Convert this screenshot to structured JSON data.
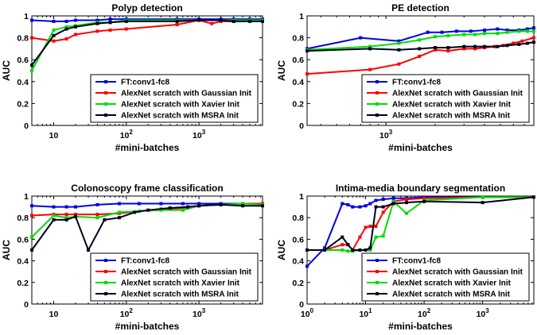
{
  "colors": {
    "FT": "#0000e6",
    "Gaussian": "#ff0000",
    "Xavier": "#00dd00",
    "MSRA": "#000020"
  },
  "legend_entries": [
    {
      "key": "FT",
      "label": "FT:conv1-fc8"
    },
    {
      "key": "Gaussian",
      "label": "AlexNet scratch with Gaussian Init"
    },
    {
      "key": "Xavier",
      "label": "AlexNet scratch with Xavier Init"
    },
    {
      "key": "MSRA",
      "label": "AlexNet scratch with MSRA Init"
    }
  ],
  "chart_data": [
    {
      "type": "line",
      "title": "Polyp detection",
      "xlabel": "#mini-batches",
      "ylabel": "AUC",
      "xscale": "log",
      "xlim": [
        5,
        7500
      ],
      "ylim": [
        0,
        1
      ],
      "xticks": [
        {
          "value": 10,
          "label": "10"
        },
        {
          "value": 100,
          "label": "2"
        },
        {
          "value": 1000,
          "label": "3"
        }
      ],
      "yticks": [
        "0",
        "0.2",
        "0.4",
        "0.6",
        "0.8",
        "1"
      ],
      "legend": "lower-right",
      "grid": false,
      "series": [
        {
          "key": "FT",
          "name": "FT:conv1-fc8",
          "x": [
            5,
            10,
            15,
            20,
            40,
            60,
            100,
            500,
            1000,
            2000,
            3000,
            5000,
            7500
          ],
          "y": [
            0.96,
            0.95,
            0.95,
            0.96,
            0.96,
            0.97,
            0.97,
            0.97,
            0.97,
            0.97,
            0.97,
            0.97,
            0.97
          ]
        },
        {
          "key": "Gaussian",
          "name": "AlexNet scratch with Gaussian Init",
          "x": [
            5,
            10,
            15,
            20,
            40,
            60,
            100,
            500,
            1000,
            1500,
            2000,
            3000,
            5000,
            7500
          ],
          "y": [
            0.8,
            0.77,
            0.79,
            0.83,
            0.86,
            0.87,
            0.88,
            0.92,
            0.96,
            0.93,
            0.95,
            0.95,
            0.96,
            0.96
          ]
        },
        {
          "key": "Xavier",
          "name": "AlexNet scratch with Xavier Init",
          "x": [
            5,
            10,
            15,
            20,
            40,
            60,
            100,
            500,
            1000,
            2000,
            3000,
            5000,
            7500
          ],
          "y": [
            0.5,
            0.87,
            0.9,
            0.91,
            0.94,
            0.94,
            0.96,
            0.96,
            0.96,
            0.96,
            0.96,
            0.96,
            0.96
          ]
        },
        {
          "key": "MSRA",
          "name": "AlexNet scratch with MSRA Init",
          "x": [
            5,
            10,
            15,
            20,
            40,
            60,
            100,
            500,
            1000,
            2000,
            3000,
            5000,
            7500
          ],
          "y": [
            0.55,
            0.82,
            0.88,
            0.9,
            0.93,
            0.94,
            0.95,
            0.95,
            0.96,
            0.96,
            0.95,
            0.95,
            0.95
          ]
        }
      ]
    },
    {
      "type": "line",
      "title": "PE detection",
      "xlabel": "#mini-batches",
      "ylabel": "AUC",
      "xscale": "log",
      "xlim": [
        330,
        8000
      ],
      "ylim": [
        0,
        1
      ],
      "xticks": [
        {
          "value": 1000,
          "label": "3"
        }
      ],
      "yticks": [
        "0",
        "0.2",
        "0.4",
        "0.6",
        "0.8",
        "1"
      ],
      "legend": "lower-right",
      "grid": false,
      "series": [
        {
          "key": "FT",
          "name": "FT:conv1-fc8",
          "x": [
            330,
            700,
            1200,
            1800,
            2200,
            2700,
            3300,
            4000,
            4800,
            5500,
            6500,
            7300,
            8000
          ],
          "y": [
            0.7,
            0.8,
            0.77,
            0.85,
            0.85,
            0.86,
            0.86,
            0.87,
            0.88,
            0.87,
            0.87,
            0.88,
            0.89
          ]
        },
        {
          "key": "Gaussian",
          "name": "AlexNet scratch with Gaussian Init",
          "x": [
            330,
            800,
            1200,
            1600,
            2000,
            2400,
            3000,
            3500,
            4000,
            4600,
            5200,
            6000,
            6800,
            8000
          ],
          "y": [
            0.47,
            0.51,
            0.56,
            0.63,
            0.69,
            0.68,
            0.7,
            0.7,
            0.71,
            0.72,
            0.73,
            0.75,
            0.77,
            0.8
          ]
        },
        {
          "key": "Xavier",
          "name": "AlexNet scratch with Xavier Init",
          "x": [
            330,
            800,
            1200,
            1600,
            2000,
            2400,
            3000,
            3500,
            4000,
            4800,
            5500,
            6500,
            7300,
            8000
          ],
          "y": [
            0.69,
            0.72,
            0.75,
            0.78,
            0.81,
            0.82,
            0.83,
            0.83,
            0.84,
            0.84,
            0.85,
            0.86,
            0.86,
            0.86
          ]
        },
        {
          "key": "MSRA",
          "name": "AlexNet scratch with MSRA Init",
          "x": [
            330,
            800,
            1200,
            1600,
            2000,
            2400,
            3000,
            3500,
            4000,
            4800,
            5500,
            6500,
            7300,
            8000
          ],
          "y": [
            0.68,
            0.7,
            0.69,
            0.7,
            0.71,
            0.71,
            0.72,
            0.72,
            0.72,
            0.72,
            0.73,
            0.74,
            0.75,
            0.76
          ]
        }
      ]
    },
    {
      "type": "line",
      "title": "Colonoscopy frame classification",
      "xlabel": "#mini-batches",
      "ylabel": "AUC",
      "xscale": "log",
      "xlim": [
        5,
        7500
      ],
      "ylim": [
        0,
        1
      ],
      "xticks": [
        {
          "value": 10,
          "label": "10"
        },
        {
          "value": 100,
          "label": "2"
        },
        {
          "value": 1000,
          "label": "3"
        }
      ],
      "yticks": [
        "0",
        "0.2",
        "0.4",
        "0.6",
        "0.8",
        "1"
      ],
      "legend": "lower-right",
      "grid": false,
      "series": [
        {
          "key": "FT",
          "name": "FT:conv1-fc8",
          "x": [
            5,
            10,
            15,
            20,
            40,
            80,
            150,
            300,
            600,
            1000,
            2000,
            4000,
            7500
          ],
          "y": [
            0.91,
            0.9,
            0.9,
            0.9,
            0.92,
            0.93,
            0.93,
            0.93,
            0.93,
            0.93,
            0.93,
            0.93,
            0.93
          ]
        },
        {
          "key": "Gaussian",
          "name": "AlexNet scratch with Gaussian Init",
          "x": [
            5,
            10,
            15,
            20,
            40,
            80,
            150,
            300,
            600,
            1000,
            2000,
            4000,
            7500
          ],
          "y": [
            0.82,
            0.83,
            0.83,
            0.83,
            0.83,
            0.84,
            0.86,
            0.88,
            0.89,
            0.91,
            0.92,
            0.93,
            0.93
          ]
        },
        {
          "key": "Xavier",
          "name": "AlexNet scratch with Xavier Init",
          "x": [
            5,
            10,
            15,
            20,
            40,
            80,
            150,
            300,
            600,
            1000,
            2000,
            4000,
            7500
          ],
          "y": [
            0.62,
            0.82,
            0.8,
            0.81,
            0.8,
            0.85,
            0.86,
            0.87,
            0.87,
            0.91,
            0.92,
            0.93,
            0.92
          ]
        },
        {
          "key": "MSRA",
          "name": "AlexNet scratch with MSRA Init",
          "x": [
            5,
            10,
            15,
            20,
            30,
            50,
            80,
            130,
            200,
            400,
            700,
            1000,
            2000,
            4000,
            7500
          ],
          "y": [
            0.5,
            0.78,
            0.78,
            0.81,
            0.5,
            0.78,
            0.8,
            0.85,
            0.87,
            0.89,
            0.9,
            0.91,
            0.92,
            0.91,
            0.91
          ]
        }
      ]
    },
    {
      "type": "line",
      "title": "Intima-media boundary segmentation",
      "xlabel": "#mini-batches",
      "ylabel": "AUC",
      "xscale": "log",
      "xlim": [
        1,
        7500
      ],
      "ylim": [
        0,
        1
      ],
      "xticks": [
        {
          "value": 1,
          "label": "0"
        },
        {
          "value": 10,
          "label": "1"
        },
        {
          "value": 100,
          "label": "2"
        },
        {
          "value": 1000,
          "label": "3"
        }
      ],
      "yticks": [
        "0",
        "0.2",
        "0.4",
        "0.6",
        "0.8",
        "1"
      ],
      "legend": "lower-right",
      "grid": false,
      "series": [
        {
          "key": "FT",
          "name": "FT:conv1-fc8",
          "x": [
            1,
            2,
            4,
            5,
            6,
            8,
            10,
            12,
            15,
            20,
            30,
            50,
            100,
            1000,
            7500
          ],
          "y": [
            0.35,
            0.52,
            0.93,
            0.92,
            0.9,
            0.9,
            0.91,
            0.93,
            0.96,
            0.97,
            0.98,
            0.98,
            0.99,
            0.99,
            0.99
          ]
        },
        {
          "key": "Gaussian",
          "name": "AlexNet scratch with Gaussian Init",
          "x": [
            1,
            2,
            4,
            5,
            6,
            8,
            10,
            12,
            15,
            20,
            30,
            50,
            100,
            1000,
            7500
          ],
          "y": [
            0.5,
            0.5,
            0.55,
            0.55,
            0.5,
            0.62,
            0.71,
            0.72,
            0.72,
            0.85,
            0.95,
            0.97,
            0.98,
            0.99,
            0.99
          ]
        },
        {
          "key": "Xavier",
          "name": "AlexNet scratch with Xavier Init",
          "x": [
            1,
            2,
            4,
            5,
            6,
            8,
            10,
            12,
            15,
            20,
            30,
            50,
            100,
            1000,
            7500
          ],
          "y": [
            0.5,
            0.5,
            0.5,
            0.49,
            0.49,
            0.5,
            0.5,
            0.5,
            0.62,
            0.63,
            0.95,
            0.84,
            0.96,
            0.99,
            0.99
          ]
        },
        {
          "key": "MSRA",
          "name": "AlexNet scratch with MSRA Init",
          "x": [
            1,
            2,
            4,
            5,
            6,
            8,
            10,
            12,
            15,
            20,
            30,
            50,
            100,
            1000,
            7500
          ],
          "y": [
            0.5,
            0.5,
            0.62,
            0.55,
            0.5,
            0.5,
            0.5,
            0.52,
            0.9,
            0.9,
            0.93,
            0.94,
            0.95,
            0.94,
            0.99
          ]
        }
      ]
    }
  ]
}
